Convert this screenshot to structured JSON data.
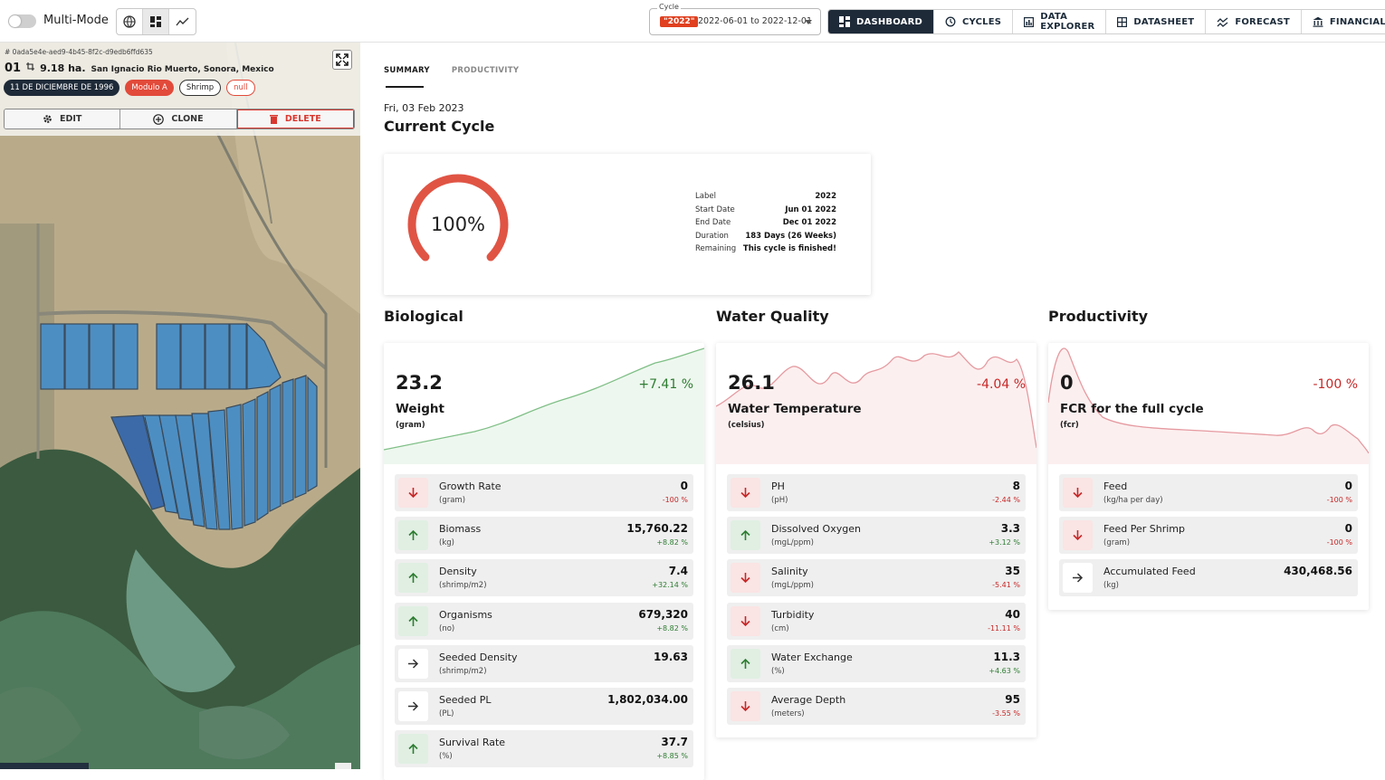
{
  "topbar": {
    "multimode_label": "Multi-Mode",
    "cycle": {
      "legend": "Cycle",
      "tag": "\"2022\"",
      "range": "2022-06-01 to 2022-12-01"
    },
    "nav": [
      {
        "label": "DASHBOARD",
        "icon": "dashboard-icon",
        "active": true
      },
      {
        "label": "CYCLES",
        "icon": "cycles-icon"
      },
      {
        "label": "DATA EXPLORER",
        "icon": "data-explorer-icon"
      },
      {
        "label": "DATASHEET",
        "icon": "datasheet-icon"
      },
      {
        "label": "FORECAST",
        "icon": "forecast-icon"
      },
      {
        "label": "FINANCIALS",
        "icon": "financials-icon"
      }
    ]
  },
  "pond": {
    "id": "# 0ada5e4e-aed9-4b45-8f2c-d9edb6ffd635",
    "number": "01",
    "area": "9.18 ha.",
    "location": "San Ignacio Rio Muerto, Sonora, Mexico",
    "chips": [
      "11 DE DICIEMBRE DE 1996",
      "Modulo A",
      "Shrimp",
      "null"
    ],
    "actions": {
      "edit": "EDIT",
      "clone": "CLONE",
      "delete": "DELETE"
    }
  },
  "main": {
    "tabs": [
      "SUMMARY",
      "PRODUCTIVITY"
    ],
    "date": "Fri, 03 Feb 2023",
    "title": "Current Cycle",
    "progress_percent": 100,
    "progress_text": "100%",
    "cycle_info": [
      {
        "k": "Label",
        "v": "2022"
      },
      {
        "k": "Start Date",
        "v": "Jun 01 2022"
      },
      {
        "k": "End Date",
        "v": "Dec 01 2022"
      },
      {
        "k": "Duration",
        "v": "183 Days (26 Weeks)"
      },
      {
        "k": "Remaining",
        "v": "This cycle is finished!"
      }
    ]
  },
  "colors": {
    "accent_dark": "#1e2a38",
    "up": "#2e7d32",
    "down": "#c62828",
    "gauge": "#e05444"
  },
  "sections": [
    {
      "title": "Biological",
      "kpi": {
        "value": "23.2",
        "change": "+7.41 %",
        "dir": "up",
        "label": "Weight",
        "unit": "(gram)"
      },
      "metrics": [
        {
          "name": "Growth Rate",
          "unit": "(gram)",
          "value": "0",
          "change": "-100 %",
          "dir": "down"
        },
        {
          "name": "Biomass",
          "unit": "(kg)",
          "value": "15,760.22",
          "change": "+8.82 %",
          "dir": "up"
        },
        {
          "name": "Density",
          "unit": "(shrimp/m2)",
          "value": "7.4",
          "change": "+32.14 %",
          "dir": "up"
        },
        {
          "name": "Organisms",
          "unit": "(no)",
          "value": "679,320",
          "change": "+8.82 %",
          "dir": "up"
        },
        {
          "name": "Seeded Density",
          "unit": "(shrimp/m2)",
          "value": "19.63",
          "change": "",
          "dir": "flat"
        },
        {
          "name": "Seeded PL",
          "unit": "(PL)",
          "value": "1,802,034.00",
          "change": "",
          "dir": "flat"
        },
        {
          "name": "Survival Rate",
          "unit": "(%)",
          "value": "37.7",
          "change": "+8.85 %",
          "dir": "up"
        }
      ]
    },
    {
      "title": "Water Quality",
      "kpi": {
        "value": "26.1",
        "change": "-4.04 %",
        "dir": "down",
        "label": "Water Temperature",
        "unit": "(celsius)"
      },
      "metrics": [
        {
          "name": "PH",
          "unit": "(pH)",
          "value": "8",
          "change": "-2.44 %",
          "dir": "down"
        },
        {
          "name": "Dissolved Oxygen",
          "unit": "(mgL/ppm)",
          "value": "3.3",
          "change": "+3.12 %",
          "dir": "up"
        },
        {
          "name": "Salinity",
          "unit": "(mgL/ppm)",
          "value": "35",
          "change": "-5.41 %",
          "dir": "down"
        },
        {
          "name": "Turbidity",
          "unit": "(cm)",
          "value": "40",
          "change": "-11.11 %",
          "dir": "down"
        },
        {
          "name": "Water Exchange",
          "unit": "(%)",
          "value": "11.3",
          "change": "+4.63 %",
          "dir": "up"
        },
        {
          "name": "Average Depth",
          "unit": "(meters)",
          "value": "95",
          "change": "-3.55 %",
          "dir": "down"
        }
      ]
    },
    {
      "title": "Productivity",
      "kpi": {
        "value": "0",
        "change": "-100 %",
        "dir": "down",
        "label": "FCR for the full cycle",
        "unit": "(fcr)"
      },
      "metrics": [
        {
          "name": "Feed",
          "unit": "(kg/ha per day)",
          "value": "0",
          "change": "-100 %",
          "dir": "down"
        },
        {
          "name": "Feed Per Shrimp",
          "unit": "(gram)",
          "value": "0",
          "change": "-100 %",
          "dir": "down"
        },
        {
          "name": "Accumulated Feed",
          "unit": "(kg)",
          "value": "430,468.56",
          "change": "",
          "dir": "flat"
        }
      ]
    }
  ]
}
